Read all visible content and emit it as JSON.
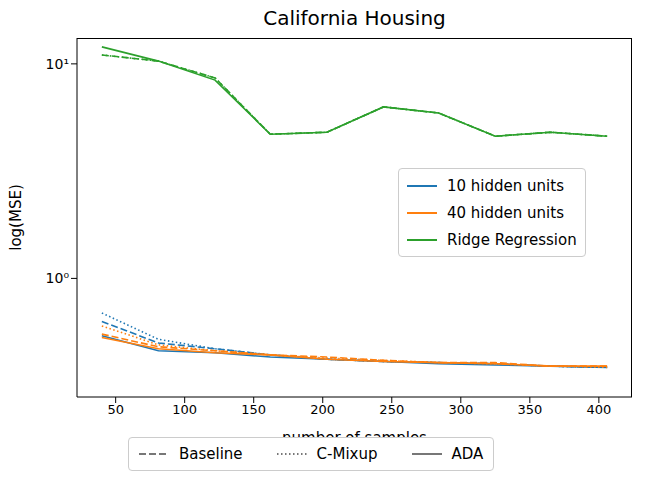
{
  "chart_data": {
    "type": "line",
    "title": "California Housing",
    "x_label": "number of samples",
    "y_label": "log(MSE)",
    "log": "y",
    "grid": false,
    "legend": "right",
    "x": [
      40,
      81,
      122,
      162,
      203,
      244,
      284,
      325,
      365,
      406
    ],
    "xlim": [
      22,
      424
    ],
    "xticks": [
      50,
      100,
      150,
      200,
      250,
      300,
      350,
      400
    ],
    "ylim": [
      0.28,
      13.2
    ],
    "yticks": [
      {
        "value": 1,
        "label": "10⁰"
      },
      {
        "value": 10,
        "label": "10¹"
      }
    ],
    "methods": [
      {
        "name": "Baseline",
        "line_style": "dashed"
      },
      {
        "name": "C-Mixup",
        "line_style": "dotted"
      },
      {
        "name": "ADA",
        "line_style": "solid"
      }
    ],
    "series": [
      {
        "name": "10 hidden units",
        "method": "Baseline",
        "color": "#1f77b4",
        "line_style": "dashed",
        "values": [
          0.63,
          0.5,
          0.47,
          0.44,
          0.42,
          0.41,
          0.405,
          0.4,
          0.39,
          0.385
        ]
      },
      {
        "name": "10 hidden units",
        "method": "C-Mixup",
        "color": "#1f77b4",
        "line_style": "dotted",
        "values": [
          0.69,
          0.52,
          0.47,
          0.44,
          0.42,
          0.41,
          0.405,
          0.4,
          0.39,
          0.385
        ]
      },
      {
        "name": "10 hidden units",
        "method": "ADA",
        "color": "#1f77b4",
        "line_style": "solid",
        "values": [
          0.54,
          0.46,
          0.45,
          0.43,
          0.42,
          0.41,
          0.4,
          0.395,
          0.39,
          0.385
        ]
      },
      {
        "name": "40 hidden units",
        "method": "Baseline",
        "color": "#ff7f0e",
        "line_style": "dashed",
        "values": [
          0.55,
          0.48,
          0.46,
          0.44,
          0.43,
          0.415,
          0.405,
          0.405,
          0.39,
          0.39
        ]
      },
      {
        "name": "40 hidden units",
        "method": "C-Mixup",
        "color": "#ff7f0e",
        "line_style": "dotted",
        "values": [
          0.6,
          0.49,
          0.46,
          0.44,
          0.425,
          0.415,
          0.405,
          0.4,
          0.39,
          0.385
        ]
      },
      {
        "name": "40 hidden units",
        "method": "ADA",
        "color": "#ff7f0e",
        "line_style": "solid",
        "values": [
          0.53,
          0.47,
          0.45,
          0.44,
          0.42,
          0.41,
          0.405,
          0.4,
          0.39,
          0.39
        ]
      },
      {
        "name": "Ridge Regression",
        "method": "Baseline",
        "color": "#2ca02c",
        "line_style": "dashed",
        "values": [
          11,
          10.3,
          8.6,
          4.7,
          4.8,
          6.3,
          5.9,
          4.6,
          4.8,
          4.6
        ]
      },
      {
        "name": "Ridge Regression",
        "method": "C-Mixup",
        "color": "#2ca02c",
        "line_style": "dotted",
        "values": [
          11,
          10.3,
          8.6,
          4.7,
          4.8,
          6.3,
          5.9,
          4.6,
          4.8,
          4.6
        ]
      },
      {
        "name": "Ridge Regression",
        "method": "ADA",
        "color": "#2ca02c",
        "line_style": "solid",
        "values": [
          12,
          10.3,
          8.4,
          4.7,
          4.8,
          6.3,
          5.9,
          4.6,
          4.8,
          4.6
        ]
      }
    ]
  }
}
